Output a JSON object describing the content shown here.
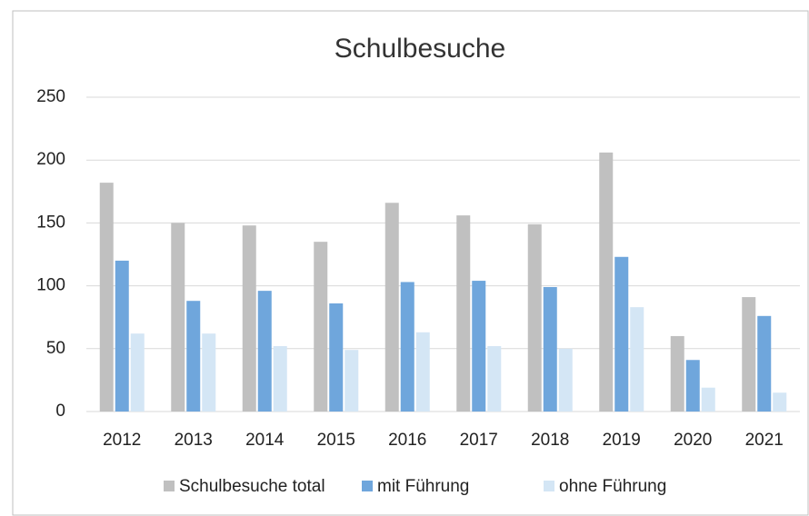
{
  "chart_data": {
    "type": "bar",
    "title": "Schulbesuche",
    "categories": [
      "2012",
      "2013",
      "2014",
      "2015",
      "2016",
      "2017",
      "2018",
      "2019",
      "2020",
      "2021"
    ],
    "series": [
      {
        "name": "Schulbesuche total",
        "color": "#c0c0c0",
        "values": [
          182,
          150,
          148,
          135,
          166,
          156,
          149,
          206,
          60,
          91
        ]
      },
      {
        "name": "mit Führung",
        "color": "#6fa6dc",
        "values": [
          120,
          88,
          96,
          86,
          103,
          104,
          99,
          123,
          41,
          76
        ]
      },
      {
        "name": "ohne Führung",
        "color": "#d4e6f5",
        "values": [
          62,
          62,
          52,
          49,
          63,
          52,
          50,
          83,
          19,
          15
        ]
      }
    ],
    "ylim": [
      0,
      250
    ],
    "yticks": [
      0,
      50,
      100,
      150,
      200,
      250
    ],
    "grid": true,
    "legend": "bottom"
  }
}
